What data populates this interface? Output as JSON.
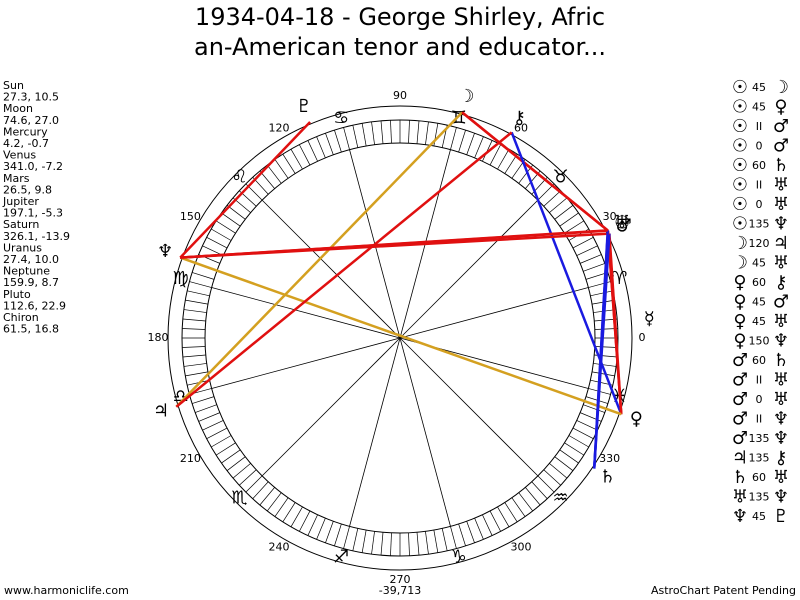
{
  "title_lines": [
    "1934-04-18 - George Shirley, Afric",
    "an-American tenor and educator..."
  ],
  "planets": [
    {
      "name": "Sun",
      "glyph": "☉",
      "position": "27.3, 10.5"
    },
    {
      "name": "Moon",
      "glyph": "☽",
      "position": "74.6, 27.0"
    },
    {
      "name": "Mercury",
      "glyph": "☿",
      "position": "4.2, -0.7"
    },
    {
      "name": "Venus",
      "glyph": "♀",
      "position": "341.0, -7.2"
    },
    {
      "name": "Mars",
      "glyph": "♂",
      "position": "26.5, 9.8"
    },
    {
      "name": "Jupiter",
      "glyph": "♃",
      "position": "197.1, -5.3"
    },
    {
      "name": "Saturn",
      "glyph": "♄",
      "position": "326.1, -13.9"
    },
    {
      "name": "Uranus",
      "glyph": "♅",
      "position": "27.4, 10.0"
    },
    {
      "name": "Neptune",
      "glyph": "♆",
      "position": "159.9, 8.7"
    },
    {
      "name": "Pluto",
      "glyph": "♇",
      "position": "112.6, 22.9"
    },
    {
      "name": "Chiron",
      "glyph": "⚷",
      "position": "61.5, 16.8"
    }
  ],
  "zodiac_signs": [
    "♈",
    "♉",
    "♊",
    "♋",
    "♌",
    "♍",
    "♎",
    "♏",
    "♐",
    "♑",
    "♒",
    "♓"
  ],
  "degree_labels": [
    0,
    30,
    60,
    90,
    120,
    150,
    180,
    210,
    240,
    270,
    300,
    330
  ],
  "aspects": [
    {
      "from": "☉",
      "aspect": 45,
      "to": "☽"
    },
    {
      "from": "☉",
      "aspect": 45,
      "to": "♀"
    },
    {
      "from": "☉",
      "aspect": "II",
      "to": "♂"
    },
    {
      "from": "☉",
      "aspect": 0,
      "to": "♂"
    },
    {
      "from": "☉",
      "aspect": 60,
      "to": "♄"
    },
    {
      "from": "☉",
      "aspect": "II",
      "to": "♅"
    },
    {
      "from": "☉",
      "aspect": 0,
      "to": "♅"
    },
    {
      "from": "☉",
      "aspect": 135,
      "to": "♆"
    },
    {
      "from": "☽",
      "aspect": 120,
      "to": "♃"
    },
    {
      "from": "☽",
      "aspect": 45,
      "to": "♅"
    },
    {
      "from": "♀",
      "aspect": 60,
      "to": "⚷"
    },
    {
      "from": "♀",
      "aspect": 45,
      "to": "♂"
    },
    {
      "from": "♀",
      "aspect": 45,
      "to": "♅"
    },
    {
      "from": "♀",
      "aspect": 150,
      "to": "♆"
    },
    {
      "from": "♂",
      "aspect": 60,
      "to": "♄"
    },
    {
      "from": "♂",
      "aspect": "II",
      "to": "♅"
    },
    {
      "from": "♂",
      "aspect": 0,
      "to": "♅"
    },
    {
      "from": "♂",
      "aspect": "II",
      "to": "♆"
    },
    {
      "from": "♂",
      "aspect": 135,
      "to": "♆"
    },
    {
      "from": "♃",
      "aspect": 135,
      "to": "⚷"
    },
    {
      "from": "♄",
      "aspect": 60,
      "to": "♅"
    },
    {
      "from": "♅",
      "aspect": 135,
      "to": "♆"
    },
    {
      "from": "♆",
      "aspect": 45,
      "to": "♇"
    }
  ],
  "aspect_line_colors": {
    "45": "#e01010",
    "135": "#e01010",
    "60": "#1a1ae0",
    "120": "#d4a020",
    "150": "#d4a020"
  },
  "footer": {
    "website": "www.harmoniclife.com",
    "number": "-39,713",
    "notice": "AstroChart Patent Pending"
  }
}
